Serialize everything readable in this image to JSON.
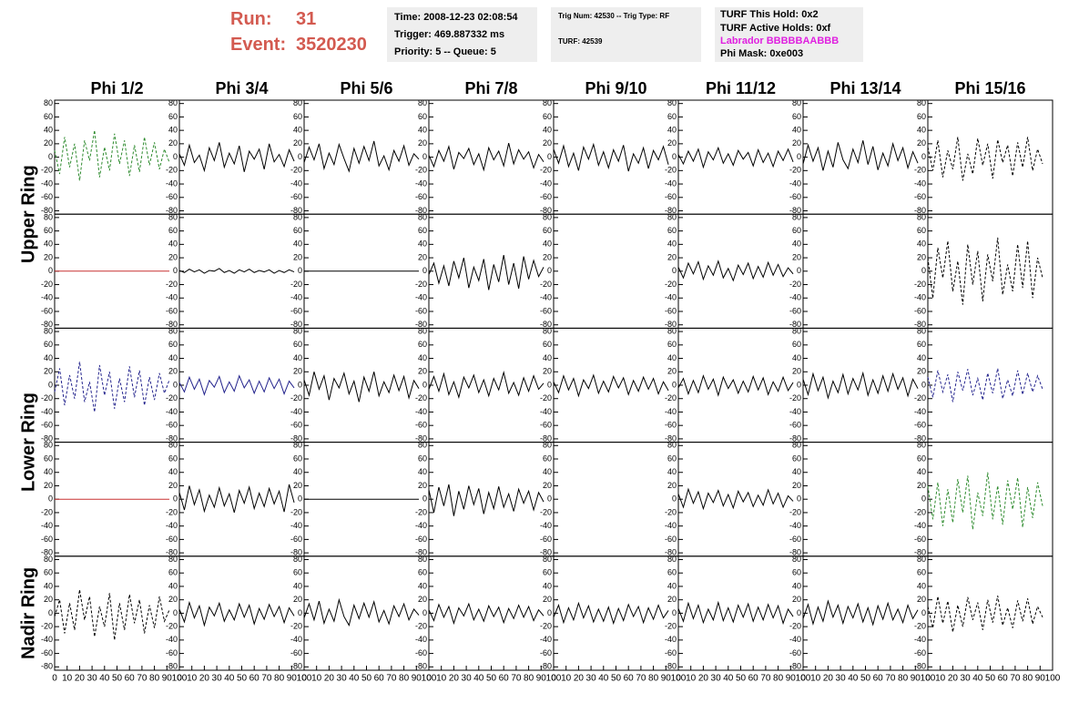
{
  "header": {
    "run_label": "Run:",
    "run": "31",
    "event_label": "Event:",
    "event": "3520230",
    "time": "Time: 2008-12-23 02:08:54",
    "trigger": "Trigger: 469.887332 ms",
    "priority": "Priority: 5 -- Queue: 5",
    "trig_num": "Trig Num: 42530 -- Trig Type: RF",
    "turf": "TURF: 42539",
    "turf_hold": "TURF This Hold: 0x2",
    "turf_active": "TURF Active Holds: 0xf",
    "labrador": "Labrador BBBBBAABBB",
    "phi_mask": "Phi Mask: 0xe003"
  },
  "chart_data": {
    "type": "waveform-grid",
    "columns": [
      "Phi 1/2",
      "Phi 3/4",
      "Phi 5/6",
      "Phi 7/8",
      "Phi 9/10",
      "Phi 11/12",
      "Phi 13/14",
      "Phi 15/16"
    ],
    "ring_labels": [
      "Upper Ring",
      "Lower Ring",
      "Nadir Ring"
    ],
    "xlim": [
      0,
      100
    ],
    "xticks": [
      0,
      10,
      20,
      30,
      40,
      50,
      60,
      70,
      80,
      90,
      100
    ],
    "ylim": [
      -85,
      85
    ],
    "yticks": [
      -80,
      -60,
      -40,
      -20,
      0,
      20,
      40,
      60,
      80
    ],
    "x": [
      0,
      4,
      8,
      12,
      16,
      20,
      24,
      28,
      32,
      36,
      40,
      44,
      48,
      52,
      56,
      60,
      64,
      68,
      72,
      76,
      80,
      84,
      88,
      92
    ],
    "panels": [
      [
        {
          "color": "#2e8b2e",
          "dashed": true,
          "values": [
            10,
            -25,
            30,
            -15,
            20,
            -35,
            25,
            -5,
            40,
            -30,
            15,
            -20,
            35,
            -10,
            25,
            -28,
            18,
            -22,
            30,
            -12,
            22,
            -18,
            12,
            -8
          ]
        },
        {
          "color": "#000000",
          "dashed": false,
          "values": [
            5,
            -12,
            18,
            -8,
            3,
            -20,
            14,
            -5,
            22,
            -15,
            6,
            -10,
            17,
            -22,
            9,
            -3,
            12,
            -18,
            20,
            -7,
            4,
            -14,
            11,
            -6
          ]
        },
        {
          "color": "#000000",
          "dashed": false,
          "values": [
            -8,
            15,
            -4,
            20,
            -17,
            6,
            -11,
            19,
            -2,
            -21,
            13,
            -9,
            16,
            -5,
            24,
            -13,
            2,
            -19,
            10,
            -6,
            17,
            -12,
            5,
            -3
          ]
        },
        {
          "color": "#000000",
          "dashed": false,
          "values": [
            3,
            -14,
            10,
            -6,
            16,
            -18,
            7,
            -2,
            13,
            -11,
            5,
            -19,
            14,
            -4,
            9,
            -13,
            21,
            -10,
            11,
            -3,
            8,
            -16,
            4,
            -7
          ]
        },
        {
          "color": "#000000",
          "dashed": false,
          "values": [
            12,
            -9,
            17,
            -14,
            6,
            -20,
            15,
            -3,
            19,
            -12,
            8,
            -16,
            11,
            -6,
            18,
            -21,
            5,
            -9,
            14,
            -17,
            10,
            -4,
            16,
            -11
          ]
        },
        {
          "color": "#000000",
          "dashed": false,
          "values": [
            4,
            -10,
            9,
            -6,
            12,
            -15,
            8,
            -4,
            14,
            -9,
            5,
            -12,
            10,
            -3,
            7,
            -13,
            11,
            -8,
            6,
            -14,
            9,
            -5,
            12,
            -7
          ]
        },
        {
          "color": "#000000",
          "dashed": false,
          "values": [
            -10,
            18,
            -6,
            14,
            -20,
            9,
            -15,
            22,
            -4,
            -17,
            12,
            -8,
            25,
            -11,
            16,
            -19,
            6,
            -13,
            20,
            -5,
            14,
            -16,
            8,
            -9
          ]
        },
        {
          "color": "#000000",
          "dashed": true,
          "values": [
            15,
            -20,
            25,
            -30,
            10,
            -18,
            30,
            -35,
            5,
            -25,
            28,
            -12,
            20,
            -32,
            26,
            -8,
            18,
            -28,
            22,
            -15,
            30,
            -20,
            12,
            -10
          ]
        }
      ],
      [
        {
          "color": "#c83232",
          "dashed": false,
          "values": [
            0,
            0,
            0,
            0,
            0,
            0,
            0,
            0,
            0,
            0,
            0,
            0,
            0,
            0,
            0,
            0,
            0,
            0,
            0,
            0,
            0,
            0,
            0,
            0
          ]
        },
        {
          "color": "#000000",
          "dashed": false,
          "values": [
            1,
            -2,
            3,
            -1,
            2,
            -3,
            1,
            0,
            4,
            -2,
            1,
            -3,
            2,
            -1,
            3,
            -2,
            1,
            -1,
            2,
            -3,
            1,
            -2,
            2,
            -1
          ]
        },
        {
          "color": "#000000",
          "dashed": false,
          "values": [
            0,
            0,
            0,
            0,
            0,
            0,
            0,
            0,
            0,
            0,
            0,
            0,
            0,
            0,
            0,
            0,
            0,
            0,
            0,
            0,
            0,
            0,
            0,
            0
          ]
        },
        {
          "color": "#000000",
          "dashed": false,
          "values": [
            -5,
            12,
            -18,
            8,
            -22,
            15,
            -10,
            20,
            -25,
            6,
            -14,
            18,
            -28,
            10,
            -16,
            24,
            -20,
            12,
            -26,
            22,
            -12,
            16,
            -8,
            6
          ]
        },
        null,
        {
          "color": "#000000",
          "dashed": false,
          "values": [
            6,
            -10,
            12,
            -4,
            14,
            -12,
            8,
            -6,
            15,
            -10,
            4,
            -14,
            9,
            -5,
            12,
            -11,
            7,
            -9,
            13,
            -6,
            10,
            -8,
            5,
            -4
          ]
        },
        null,
        {
          "color": "#000000",
          "dashed": true,
          "values": [
            20,
            -40,
            35,
            -10,
            45,
            -30,
            15,
            -50,
            40,
            -20,
            30,
            -45,
            25,
            -15,
            50,
            -35,
            10,
            -30,
            40,
            -25,
            45,
            -40,
            20,
            -10
          ]
        }
      ],
      [
        {
          "color": "#22228c",
          "dashed": true,
          "values": [
            -10,
            25,
            -30,
            15,
            -20,
            35,
            -25,
            5,
            -40,
            30,
            -15,
            20,
            -35,
            10,
            -25,
            28,
            -18,
            22,
            -30,
            12,
            -22,
            18,
            -12,
            8
          ]
        },
        {
          "color": "#22228c",
          "dashed": false,
          "values": [
            4,
            -10,
            12,
            -6,
            9,
            -14,
            7,
            -3,
            13,
            -11,
            5,
            -9,
            14,
            -4,
            8,
            -12,
            6,
            -10,
            11,
            -5,
            9,
            -13,
            6,
            -4
          ]
        },
        {
          "color": "#000000",
          "dashed": false,
          "values": [
            8,
            -15,
            20,
            -6,
            14,
            -22,
            10,
            -4,
            18,
            -13,
            6,
            -25,
            12,
            -9,
            20,
            -16,
            5,
            -11,
            15,
            -8,
            13,
            -19,
            7,
            -5
          ]
        },
        {
          "color": "#000000",
          "dashed": false,
          "values": [
            -6,
            13,
            -9,
            17,
            -14,
            5,
            -18,
            12,
            -4,
            15,
            -11,
            8,
            -16,
            10,
            -7,
            19,
            -12,
            4,
            -15,
            11,
            -9,
            14,
            -6,
            3
          ]
        },
        {
          "color": "#000000",
          "dashed": false,
          "values": [
            5,
            -11,
            14,
            -7,
            10,
            -16,
            8,
            -5,
            15,
            -12,
            6,
            -10,
            13,
            -4,
            11,
            -14,
            7,
            -9,
            12,
            -6,
            10,
            -13,
            5,
            -8
          ]
        },
        {
          "color": "#000000",
          "dashed": false,
          "values": [
            -4,
            10,
            -13,
            7,
            -11,
            14,
            -6,
            9,
            -15,
            12,
            -5,
            8,
            -12,
            6,
            -10,
            13,
            -7,
            11,
            -14,
            5,
            -9,
            12,
            -8,
            4
          ]
        },
        {
          "color": "#000000",
          "dashed": false,
          "values": [
            9,
            -14,
            17,
            -8,
            12,
            -19,
            6,
            -11,
            16,
            -13,
            10,
            -7,
            18,
            -15,
            8,
            -12,
            14,
            -9,
            17,
            -6,
            11,
            -16,
            9,
            -5
          ]
        },
        {
          "color": "#22228c",
          "dashed": true,
          "values": [
            12,
            -18,
            22,
            -10,
            16,
            -25,
            20,
            -8,
            24,
            -15,
            10,
            -22,
            18,
            -12,
            25,
            -20,
            8,
            -16,
            22,
            -14,
            18,
            -10,
            14,
            -6
          ]
        }
      ],
      [
        {
          "color": "#c83232",
          "dashed": false,
          "values": [
            0,
            0,
            0,
            0,
            0,
            0,
            0,
            0,
            0,
            0,
            0,
            0,
            0,
            0,
            0,
            0,
            0,
            0,
            0,
            0,
            0,
            0,
            0,
            0
          ]
        },
        {
          "color": "#000000",
          "dashed": false,
          "values": [
            10,
            -16,
            20,
            -8,
            14,
            -18,
            6,
            -12,
            17,
            -10,
            8,
            -20,
            13,
            -6,
            18,
            -14,
            9,
            -11,
            16,
            -7,
            12,
            -19,
            22,
            -5
          ]
        },
        {
          "color": "#000000",
          "dashed": false,
          "values": [
            0,
            0,
            0,
            0,
            0,
            0,
            0,
            0,
            0,
            0,
            0,
            0,
            0,
            0,
            0,
            0,
            0,
            0,
            0,
            0,
            0,
            0,
            0,
            0
          ]
        },
        {
          "color": "#000000",
          "dashed": false,
          "values": [
            14,
            -20,
            18,
            -10,
            22,
            -25,
            12,
            -15,
            20,
            -8,
            16,
            -22,
            10,
            -14,
            19,
            -12,
            8,
            -18,
            15,
            -6,
            12,
            -16,
            10,
            -4
          ]
        },
        null,
        {
          "color": "#000000",
          "dashed": false,
          "values": [
            8,
            -12,
            15,
            -6,
            11,
            -14,
            9,
            -5,
            13,
            -10,
            7,
            -13,
            12,
            -4,
            10,
            -11,
            6,
            -9,
            14,
            -7,
            9,
            -12,
            5,
            -3
          ]
        },
        null,
        {
          "color": "#2e8b2e",
          "dashed": true,
          "values": [
            20,
            -30,
            25,
            -40,
            15,
            -35,
            30,
            -20,
            35,
            -45,
            10,
            -25,
            40,
            -30,
            20,
            -38,
            28,
            -15,
            32,
            -42,
            18,
            -28,
            25,
            -10
          ]
        }
      ],
      [
        {
          "color": "#000000",
          "dashed": true,
          "values": [
            -5,
            20,
            -30,
            15,
            -25,
            35,
            -10,
            25,
            -35,
            10,
            -20,
            30,
            -40,
            15,
            -25,
            28,
            -15,
            20,
            -30,
            12,
            -22,
            25,
            -12,
            5
          ]
        },
        {
          "color": "#000000",
          "dashed": false,
          "values": [
            6,
            -13,
            16,
            -7,
            11,
            -18,
            9,
            -4,
            15,
            -12,
            5,
            -10,
            14,
            -6,
            12,
            -16,
            7,
            -9,
            13,
            -5,
            10,
            -14,
            8,
            -4
          ]
        },
        {
          "color": "#000000",
          "dashed": false,
          "values": [
            -7,
            14,
            -10,
            18,
            -15,
            6,
            -12,
            20,
            -5,
            -18,
            12,
            -8,
            15,
            -6,
            17,
            -13,
            4,
            -16,
            11,
            -5,
            14,
            -10,
            6,
            -3
          ]
        },
        {
          "color": "#000000",
          "dashed": false,
          "values": [
            5,
            -11,
            13,
            -6,
            10,
            -15,
            8,
            -4,
            14,
            -10,
            6,
            -12,
            11,
            -5,
            9,
            -14,
            7,
            -8,
            12,
            -6,
            10,
            -11,
            5,
            -4
          ]
        },
        {
          "color": "#000000",
          "dashed": false,
          "values": [
            -6,
            12,
            -14,
            8,
            -10,
            15,
            -7,
            11,
            -13,
            6,
            -12,
            9,
            -15,
            7,
            -11,
            13,
            -5,
            10,
            -14,
            8,
            -9,
            12,
            -7,
            4
          ]
        },
        {
          "color": "#000000",
          "dashed": false,
          "values": [
            7,
            -12,
            15,
            -8,
            12,
            -14,
            6,
            -10,
            16,
            -11,
            8,
            -13,
            12,
            -6,
            14,
            -12,
            9,
            -10,
            13,
            -7,
            11,
            -15,
            6,
            -5
          ]
        },
        {
          "color": "#000000",
          "dashed": false,
          "values": [
            -8,
            13,
            -16,
            9,
            -12,
            18,
            -6,
            12,
            -15,
            10,
            -7,
            14,
            -13,
            8,
            -17,
            11,
            -9,
            15,
            -10,
            6,
            -14,
            12,
            -8,
            5
          ]
        },
        {
          "color": "#000000",
          "dashed": true,
          "values": [
            10,
            -22,
            25,
            -15,
            18,
            -28,
            12,
            -20,
            24,
            -10,
            16,
            -25,
            20,
            -14,
            26,
            -18,
            8,
            -22,
            19,
            -12,
            22,
            -16,
            10,
            -6
          ]
        }
      ]
    ]
  }
}
